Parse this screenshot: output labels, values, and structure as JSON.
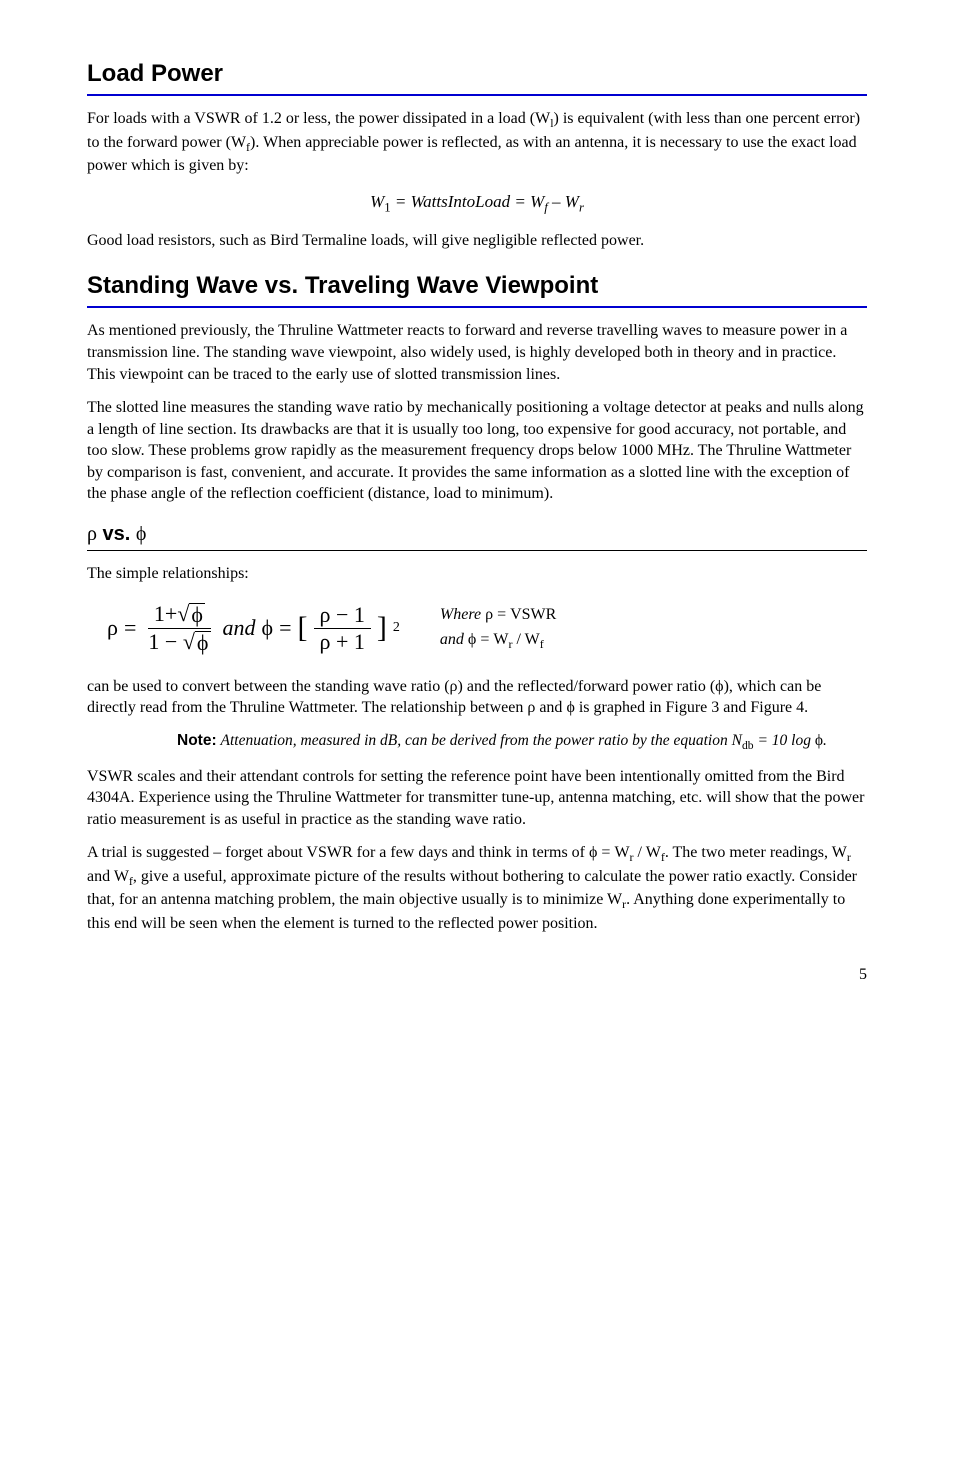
{
  "sections": {
    "loadPower": {
      "title": "Load Power",
      "p1_a": "For loads with a VSWR of 1.2 or less, the power dissipated in a load (W",
      "p1_sub1": "l",
      "p1_b": ") is equivalent (with less than one percent error) to the forward power (W",
      "p1_sub2": "f",
      "p1_c": "). When appreciable power is reflected, as with an antenna, it is necessary to use the exact load power which is given by:",
      "eq1": "W₁  =  WattsIntoLoad  =  W_f − W_r",
      "eq1_w1": "W",
      "eq1_w1sub": "1",
      "eq1_mid": "  =  WattsIntoLoad  =  ",
      "eq1_wf": "W",
      "eq1_wfsub": "f",
      "eq1_minus": " – ",
      "eq1_wr": "W",
      "eq1_wrsub": "r",
      "p2": "Good load resistors, such as Bird Termaline loads, will give negligible reflected power."
    },
    "standing": {
      "title": "Standing Wave vs. Traveling Wave Viewpoint",
      "p1": "As mentioned previously, the Thruline Wattmeter reacts to forward and reverse travelling waves to measure power in a transmission line. The standing wave viewpoint, also widely used, is highly developed both in theory and in practice. This viewpoint can be traced to the early use of slotted transmission lines.",
      "p2": "The slotted line measures the standing wave ratio by mechanically positioning a voltage detector at peaks and nulls along a length of line section. Its drawbacks are that it is usually too long, too expensive for good accuracy, not portable, and too slow. These problems grow rapidly as the measurement frequency drops below 1000 MHz. The Thruline Wattmeter by comparison is fast, convenient, and accurate. It provides the same information as a slotted line with the exception of the phase angle of the reflection coefficient (distance, load to minimum)."
    },
    "rhoPhi": {
      "title_rho": "ρ",
      "title_vs": " vs. ",
      "title_phi": "ϕ",
      "intro": "The simple relationships:",
      "eq": {
        "rho": "ρ",
        "eq": "  =  ",
        "num1a": "1+",
        "num1phi": "ϕ",
        "den1a": "1 − ",
        "den1phi": "ϕ",
        "and": " and ",
        "phi": "ϕ",
        "rhoMinus1": "ρ − 1",
        "rhoPlus1": "ρ + 1",
        "sq": "2"
      },
      "where1a": "Where ",
      "where1b": "ρ",
      "where1c": "  = VSWR",
      "where2a": "and ",
      "where2b": "ϕ",
      "where2c": "  = W",
      "where2sub1": "r",
      "where2d": " / W",
      "where2sub2": "f",
      "p_after_a": "can be used to convert between the standing wave ratio (",
      "p_after_rho": "ρ",
      "p_after_b": ") and the reflected/forward power ratio (",
      "p_after_phi": "ϕ",
      "p_after_c": "), which can be directly read from the Thruline Wattmeter. The relationship between ",
      "p_after_rho2": "ρ",
      "p_after_d": " and ",
      "p_after_phi2": "ϕ",
      "p_after_e": " is graphed in Figure 3 and Figure 4.",
      "note_label": "Note:",
      "note_a": "Attenuation, measured in dB, can be derived from the power ratio by the equation N",
      "note_sub": "db",
      "note_b": " = 10 log ",
      "note_phi": "ϕ",
      "note_c": ".",
      "p3": "VSWR scales and their attendant controls for setting the reference point have been intentionally omitted from the Bird 4304A. Experience using the Thruline Wattmeter for transmitter tune-up, antenna matching, etc. will show that the power ratio measurement is as useful in practice as the standing wave ratio.",
      "p4_a": "A trial is suggested – forget about VSWR for a few days and think in terms of ",
      "p4_phi": "ϕ",
      "p4_b": " = W",
      "p4_sub_r": "r",
      "p4_c": " / W",
      "p4_sub_f": "f",
      "p4_d": ". The two meter readings, W",
      "p4_sub_r2": "r",
      "p4_e": " and W",
      "p4_sub_f2": "f",
      "p4_f": ", give a useful, approximate picture of the results without bothering to calculate the power ratio exactly. Consider that, for an antenna matching problem, the main objective usually is to minimize W",
      "p4_sub_r3": "r",
      "p4_g": ". Anything done experimentally to this end will be seen when the element is turned to the reflected power position."
    }
  },
  "pageNumber": "5"
}
